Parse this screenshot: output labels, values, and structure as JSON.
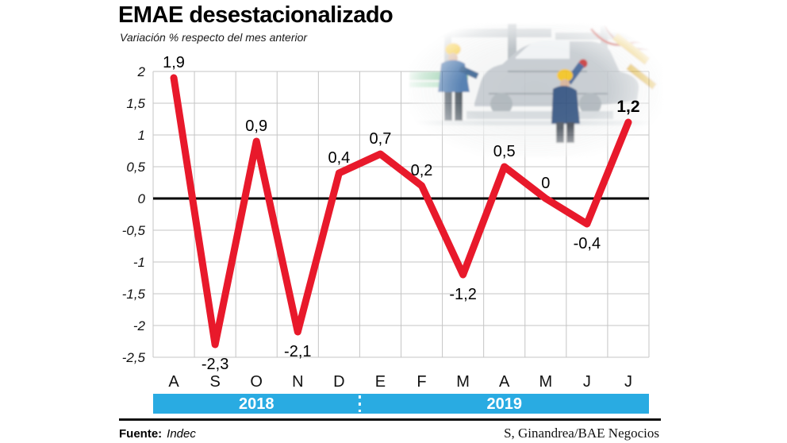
{
  "header": {
    "title": "EMAE desestacionalizado",
    "subtitle": "Variación % respecto del mes anterior"
  },
  "footer": {
    "source_label": "Fuente:",
    "source_value": "Indec",
    "credit": "S, Ginandrea/BAE Negocios"
  },
  "chart_data": {
    "type": "line",
    "title": "EMAE desestacionalizado",
    "subtitle": "Variación % respecto del mes anterior",
    "categories": [
      "A",
      "S",
      "O",
      "N",
      "D",
      "E",
      "F",
      "M",
      "A",
      "M",
      "J",
      "J"
    ],
    "values": [
      1.9,
      -2.3,
      0.9,
      -2.1,
      0.4,
      0.7,
      0.2,
      -1.2,
      0.5,
      0,
      -0.4,
      1.2
    ],
    "point_labels": [
      "1,9",
      "-2,3",
      "0,9",
      "-2,1",
      "0,4",
      "0,7",
      "0,2",
      "-1,2",
      "0,5",
      "0",
      "-0,4",
      "1,2"
    ],
    "last_label_bold": true,
    "ylim": [
      -2.5,
      2
    ],
    "ytick_step": 0.5,
    "ytick_labels": [
      "2",
      "1,5",
      "1",
      "0,5",
      "0",
      "-0,5",
      "-1",
      "-1,5",
      "-2",
      "-2,5"
    ],
    "grid": true,
    "legend_position": "none",
    "zero_baseline": true,
    "year_bands": [
      {
        "label": "2018",
        "months": 5
      },
      {
        "label": "2019",
        "months": 7
      }
    ],
    "colors": {
      "line": "#e8192b",
      "grid": "#c5c5c5",
      "zero_line": "#000000",
      "band": "#29abe2",
      "band_text": "#ffffff",
      "text": "#111111"
    }
  }
}
